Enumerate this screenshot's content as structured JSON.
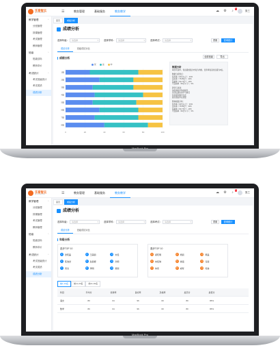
{
  "device": {
    "model_label": "MacBook Pro"
  },
  "app": {
    "logo_text": "乐育智云",
    "logo_subtext": "LE YU ZHI YUN",
    "nav": [
      "教务管理",
      "基础服务",
      "教务教学"
    ],
    "nav_active_index": 2,
    "user": {
      "name": "张三",
      "notification_count": "9"
    }
  },
  "screen1": {
    "sidebar": [
      {
        "group": "教学管理",
        "items": [
          "分班管理",
          "排课管理",
          "考试管理",
          "教师管理"
        ]
      },
      {
        "group": "班级",
        "items": [
          "班级目标",
          "教师评价"
        ]
      },
      {
        "group": "考试统计",
        "items": [
          "考试班级统计",
          "考试成绩",
          "成绩分析"
        ]
      }
    ],
    "active_sidebar_item": "成绩分析",
    "page_tabs": [
      "首页",
      "成绩分析"
    ],
    "title": "成绩分析",
    "filters": [
      {
        "label": "选择年级：",
        "placeholder": "请选择"
      },
      {
        "label": "选择学科：",
        "placeholder": "请选择"
      },
      {
        "label": "选择考试：",
        "placeholder": "请选择"
      }
    ],
    "buttons": {
      "reset": "重置",
      "search": "查询统计"
    },
    "subtabs": [
      "成绩分析",
      "班级成绩对比"
    ],
    "section_title": "成绩分析",
    "top_right_buttons": [
      "全部班级",
      "导出"
    ],
    "chart_data": {
      "type": "bar",
      "orientation": "horizontal",
      "stacked": true,
      "categories": [
        "1班",
        "2班",
        "3班",
        "4班",
        "5班",
        "6班",
        "7班",
        "8班"
      ],
      "series": [
        {
          "name": "优",
          "color": "#5b8def",
          "values": [
            25,
            35,
            28,
            30,
            28,
            35,
            30,
            40
          ]
        },
        {
          "name": "良",
          "color": "#36c1c4",
          "values": [
            50,
            35,
            42,
            50,
            45,
            40,
            45,
            45
          ]
        },
        {
          "name": "中",
          "color": "#f6c343",
          "values": [
            25,
            30,
            30,
            20,
            27,
            25,
            25,
            15
          ]
        }
      ],
      "xlim": [
        0,
        100
      ],
      "xticks": [
        "0",
        "20",
        "40",
        "60",
        "80",
        "100"
      ],
      "grid": true,
      "legend": "top-center"
    },
    "analysis_panel": {
      "title": "数据分析",
      "lines": [
        "本次考试中，各班级成绩分布较为均衡，优秀率较高的班级为8班。",
        "",
        "数据分析要点：",
        "优秀率（90分以上）：45%",
        "良好率（75-89分）：40%",
        "及格率（60-74分）：10%",
        "不及格率（60分以下）：5%",
        "",
        "建议与改进：",
        "加强薄弱学科的辅导",
        "关注后进生的学习情况",
        "优化课堂教学方式",
        "提高课后作业质量",
        "",
        "整体成绩分布：",
        "优秀率（90分以上）：45%",
        "良好率（75-89分）：40%",
        "及格率（60-74分）：10%",
        "不及格率（60分以下）：5%"
      ]
    }
  },
  "screen2": {
    "sidebar": [
      {
        "group": "教学管理",
        "items": [
          "分班管理",
          "排课管理",
          "考试管理",
          "教师管理"
        ]
      },
      {
        "group": "班级",
        "items": [
          "班级目标",
          "教师评价"
        ]
      },
      {
        "group": "考试统计",
        "items": [
          "考试班级统计",
          "考试成绩",
          "成绩分析"
        ]
      }
    ],
    "active_sidebar_item": "成绩分析",
    "page_tabs": [
      "首页",
      "成绩分析"
    ],
    "title": "成绩分析",
    "filters": [
      {
        "label": "选择年级：",
        "placeholder": "请选择"
      },
      {
        "label": "选择学科：",
        "placeholder": "请选择"
      },
      {
        "label": "选择考试：",
        "placeholder": "请选择"
      }
    ],
    "buttons": {
      "reset": "重置",
      "search": "查询统计"
    },
    "subtabs": [
      "成绩分析",
      "班级成绩对比"
    ],
    "section_title": "年级分析",
    "top_lists": [
      {
        "title": "进步TOP 10",
        "color": "#1890ff",
        "items": [
          {
            "rank": "1",
            "name": "张晓磊"
          },
          {
            "rank": "2",
            "name": "王美丽"
          },
          {
            "rank": "3",
            "name": "刘佳"
          },
          {
            "rank": "4",
            "name": "陈浩然"
          },
          {
            "rank": "5",
            "name": "赵丽娜"
          },
          {
            "rank": "6",
            "name": "孙明"
          },
          {
            "rank": "7",
            "name": "周涛"
          },
          {
            "rank": "8",
            "name": "李明"
          },
          {
            "rank": "9",
            "name": "吴刚"
          }
        ]
      },
      {
        "title": "退步TOP 10",
        "color": "#f5822a",
        "items": [
          {
            "rank": "1",
            "name": "郑晓明"
          },
          {
            "rank": "2",
            "name": "杨丽"
          },
          {
            "rank": "3",
            "name": "黄磊"
          },
          {
            "rank": "4",
            "name": "林佳琪"
          },
          {
            "rank": "5",
            "name": "徐强"
          },
          {
            "rank": "6",
            "name": "马丽"
          },
          {
            "rank": "7",
            "name": "朱伟"
          },
          {
            "rank": "8",
            "name": "胡军"
          },
          {
            "rank": "9",
            "name": "何静"
          }
        ]
      }
    ],
    "range_tabs": [
      "前1-10名",
      "前11-20名",
      "前21-30名"
    ],
    "table": {
      "headers": [
        "科目",
        "平均分",
        "优秀率",
        "良好率",
        "及格率",
        "最高分",
        "最低分"
      ],
      "rows": [
        [
          "语文",
          "80",
          "04",
          "96",
          "00",
          "80",
          "95%"
        ],
        [
          "数学",
          "80",
          "04",
          "96",
          "00",
          "80",
          "95%"
        ]
      ]
    }
  }
}
